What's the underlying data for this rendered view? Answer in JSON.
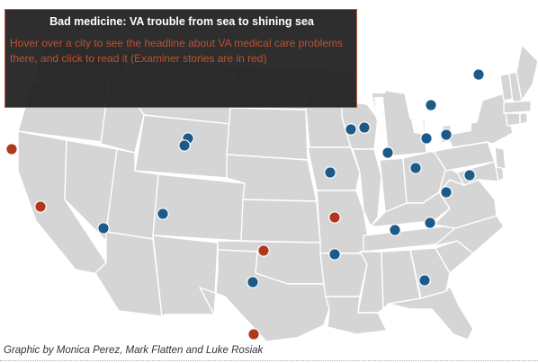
{
  "map": {
    "base_color": "#d5d5d5",
    "border_color": "#ffffff",
    "lake_color": "#ffffff",
    "va_marker_color": "#1c5a8a",
    "examiner_marker_color": "#b0381c",
    "markers": [
      {
        "type": "examiner",
        "label": "san-francisco"
      },
      {
        "type": "examiner",
        "label": "los-angeles"
      },
      {
        "type": "va",
        "label": "phoenix"
      },
      {
        "type": "va",
        "label": "albuquerque"
      },
      {
        "type": "va",
        "label": "cheyenne"
      },
      {
        "type": "va",
        "label": "denver"
      },
      {
        "type": "examiner",
        "label": "dallas"
      },
      {
        "type": "va",
        "label": "san-antonio"
      },
      {
        "type": "examiner",
        "label": "brownsville"
      },
      {
        "type": "va",
        "label": "chicago"
      },
      {
        "type": "va",
        "label": "hines"
      },
      {
        "type": "va",
        "label": "st-louis"
      },
      {
        "type": "examiner",
        "label": "memphis"
      },
      {
        "type": "va",
        "label": "jackson"
      },
      {
        "type": "va",
        "label": "indianapolis"
      },
      {
        "type": "va",
        "label": "cleveland"
      },
      {
        "type": "va",
        "label": "pittsburgh"
      },
      {
        "type": "va",
        "label": "columbus"
      },
      {
        "type": "va",
        "label": "buffalo"
      },
      {
        "type": "va",
        "label": "albany"
      },
      {
        "type": "va",
        "label": "washington"
      },
      {
        "type": "va",
        "label": "durham"
      },
      {
        "type": "va",
        "label": "columbia"
      },
      {
        "type": "va",
        "label": "atlanta"
      },
      {
        "type": "va",
        "label": "tampa"
      }
    ]
  },
  "info_box": {
    "title": "Bad medicine: VA trouble from sea to shining sea",
    "text": "Hover over a city to see the headline about VA medical care problems there, and click to read it (Examiner stories are in red)"
  },
  "credit": "Graphic by Monica Perez, Mark Flatten and Luke Rosiak"
}
